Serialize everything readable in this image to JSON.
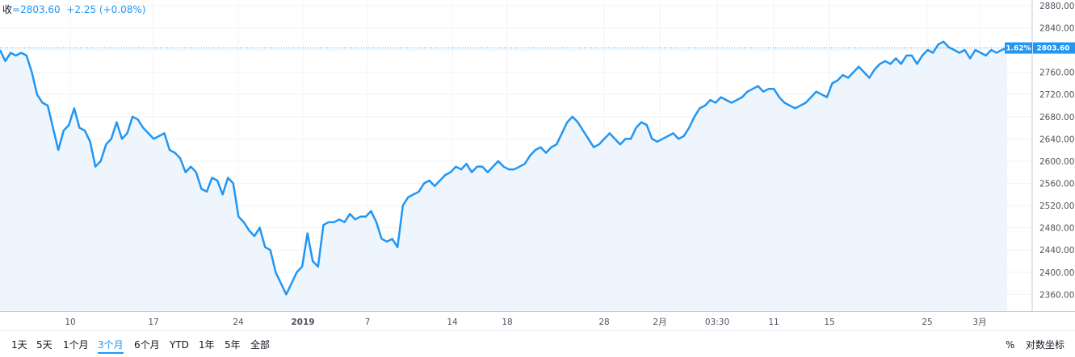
{
  "legend": {
    "label": "收",
    "value": "=2803.60",
    "change": "+2.25 (+0.08%)"
  },
  "price_tag": {
    "percent": "1.62%",
    "price": "2803.60"
  },
  "toolbar": {
    "ranges": [
      {
        "label": "1天",
        "active": false
      },
      {
        "label": "5天",
        "active": false
      },
      {
        "label": "1个月",
        "active": false
      },
      {
        "label": "3个月",
        "active": true
      },
      {
        "label": "6个月",
        "active": false
      },
      {
        "label": "YTD",
        "active": false
      },
      {
        "label": "1年",
        "active": false
      },
      {
        "label": "5年",
        "active": false
      },
      {
        "label": "全部",
        "active": false
      }
    ],
    "percent_label": "%",
    "log_label": "对数坐标"
  },
  "colors": {
    "line": "#2196f3",
    "area_fill": "#eef5fd",
    "grid": "#f0f3fa",
    "tag_bg": "#2196f3",
    "dotted_price_line": "#2196f3"
  },
  "chart_data": {
    "type": "area",
    "y_ticks": [
      "2360.00",
      "2400.00",
      "2440.00",
      "2480.00",
      "2520.00",
      "2560.00",
      "2600.00",
      "2640.00",
      "2680.00",
      "2720.00",
      "2760.00",
      "2800.00",
      "2840.00",
      "2880.00"
    ],
    "ylim": [
      2330,
      2890
    ],
    "x_ticks": [
      "10",
      "17",
      "24",
      "2019",
      "7",
      "14",
      "18",
      "28",
      "2月",
      "03:30",
      "11",
      "15",
      "25",
      "3月"
    ],
    "grid": true,
    "last_value": 2803.6,
    "values": [
      2800,
      2780,
      2795,
      2790,
      2795,
      2790,
      2760,
      2720,
      2705,
      2700,
      2660,
      2620,
      2655,
      2665,
      2695,
      2660,
      2655,
      2635,
      2590,
      2600,
      2630,
      2640,
      2670,
      2640,
      2650,
      2680,
      2675,
      2660,
      2650,
      2640,
      2645,
      2650,
      2620,
      2615,
      2605,
      2580,
      2590,
      2580,
      2550,
      2545,
      2570,
      2565,
      2540,
      2570,
      2560,
      2500,
      2490,
      2475,
      2465,
      2480,
      2445,
      2440,
      2400,
      2380,
      2360,
      2380,
      2400,
      2410,
      2470,
      2420,
      2410,
      2485,
      2490,
      2490,
      2495,
      2490,
      2505,
      2495,
      2500,
      2500,
      2510,
      2490,
      2460,
      2455,
      2460,
      2445,
      2520,
      2535,
      2540,
      2545,
      2560,
      2565,
      2555,
      2565,
      2575,
      2580,
      2590,
      2585,
      2595,
      2580,
      2590,
      2590,
      2580,
      2590,
      2600,
      2590,
      2585,
      2585,
      2590,
      2595,
      2610,
      2620,
      2625,
      2615,
      2625,
      2630,
      2650,
      2670,
      2680,
      2670,
      2655,
      2640,
      2625,
      2630,
      2640,
      2650,
      2640,
      2630,
      2640,
      2640,
      2660,
      2670,
      2665,
      2640,
      2635,
      2640,
      2645,
      2650,
      2640,
      2645,
      2660,
      2680,
      2695,
      2700,
      2710,
      2705,
      2715,
      2710,
      2705,
      2710,
      2715,
      2725,
      2730,
      2735,
      2725,
      2730,
      2730,
      2715,
      2705,
      2700,
      2695,
      2700,
      2705,
      2715,
      2725,
      2720,
      2715,
      2740,
      2745,
      2755,
      2750,
      2760,
      2770,
      2760,
      2750,
      2765,
      2775,
      2780,
      2775,
      2785,
      2775,
      2790,
      2790,
      2775,
      2790,
      2800,
      2795,
      2810,
      2815,
      2805,
      2800,
      2795,
      2800,
      2785,
      2800,
      2795,
      2790,
      2800,
      2795,
      2800,
      2803.6
    ]
  }
}
